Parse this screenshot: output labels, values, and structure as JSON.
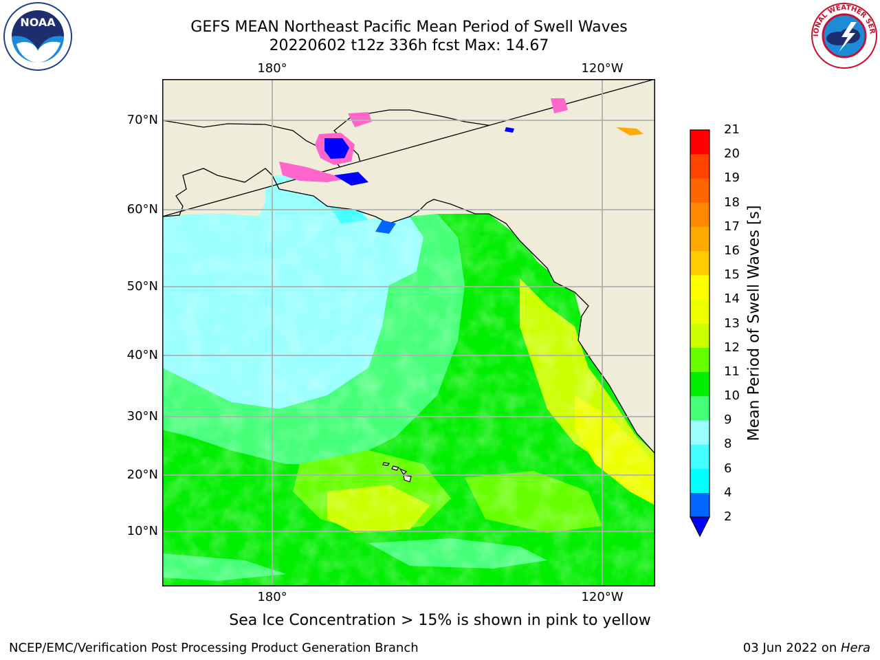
{
  "title": {
    "line1": "GEFS MEAN Northeast Pacific Mean Period of Swell Waves",
    "line2": "20220602 t12z 336h fcst   Max: 14.67"
  },
  "map": {
    "projection": "cylindrical",
    "lon_labels_top": [
      "180°",
      "120°W"
    ],
    "lon_labels_bottom": [
      "180°",
      "120°W"
    ],
    "lat_labels": [
      "70°N",
      "60°N",
      "50°N",
      "40°N",
      "30°N",
      "20°N",
      "10°N"
    ],
    "land_color": "#efedd9",
    "ocean_dominant_colors": [
      "#00ee00",
      "#44ff77",
      "#99ffff",
      "#ccff00"
    ],
    "sea_ice_colors": [
      "#ff66cc",
      "#0000ff",
      "#ffaa00"
    ]
  },
  "colorbar": {
    "label": "Mean Period of Swell Waves [s]",
    "ticks": [
      "21",
      "20",
      "19",
      "18",
      "17",
      "16",
      "15",
      "14",
      "13",
      "12",
      "11",
      "10",
      "9",
      "8",
      "6",
      "4",
      "2"
    ],
    "colors_bottom_to_top": [
      "#0066ff",
      "#00ffff",
      "#44ffff",
      "#99ffff",
      "#44ff77",
      "#00ee00",
      "#66ff00",
      "#ccff00",
      "#eeff00",
      "#ffff00",
      "#ffcc00",
      "#ffaa00",
      "#ff8800",
      "#ff6600",
      "#ff4400",
      "#ff0000"
    ],
    "extend_min_color": "#0000ff"
  },
  "caption": "Sea Ice Concentration > 15% is shown in pink to yellow",
  "footer": {
    "credit": "NCEP/EMC/Verification Post Processing Product Generation Branch",
    "date_prefix": "03 Jun 2022 on ",
    "machine": "Hera"
  },
  "logos": {
    "left": "NOAA",
    "right_text": "NATIONAL WEATHER SERVICE"
  }
}
